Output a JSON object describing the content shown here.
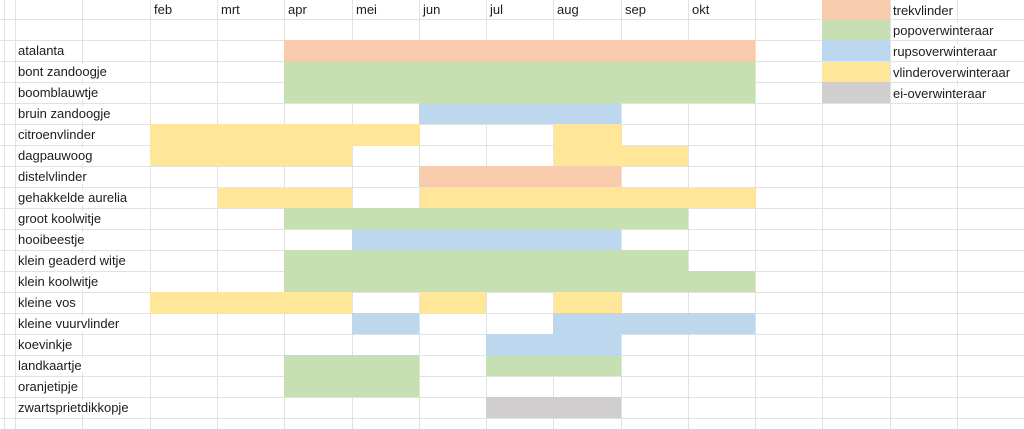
{
  "chart_data": {
    "type": "table",
    "title": "",
    "x_categories": [
      "feb",
      "mrt",
      "apr",
      "mei",
      "jun",
      "jul",
      "aug",
      "sep",
      "okt"
    ],
    "legend": [
      {
        "label": "trekvlinder",
        "color": "#F8CBAD"
      },
      {
        "label": "popoverwinteraar",
        "color": "#C6E0B4"
      },
      {
        "label": "rupsoverwinteraar",
        "color": "#BDD7EE"
      },
      {
        "label": "vlinderoverwinteraar",
        "color": "#FFE699"
      },
      {
        "label": "ei-overwinteraar",
        "color": "#D0CECE"
      }
    ],
    "rows": [
      {
        "name": "atalanta",
        "segments": [
          {
            "from": "apr",
            "to": "okt",
            "category": "trekvlinder"
          }
        ]
      },
      {
        "name": "bont zandoogje",
        "segments": [
          {
            "from": "apr",
            "to": "okt",
            "category": "popoverwinteraar"
          }
        ]
      },
      {
        "name": "boomblauwtje",
        "segments": [
          {
            "from": "apr",
            "to": "okt",
            "category": "popoverwinteraar"
          }
        ]
      },
      {
        "name": "bruin zandoogje",
        "segments": [
          {
            "from": "jun",
            "to": "aug",
            "category": "rupsoverwinteraar"
          }
        ]
      },
      {
        "name": "citroenvlinder",
        "segments": [
          {
            "from": "feb",
            "to": "mei",
            "category": "vlinderoverwinteraar"
          },
          {
            "from": "aug",
            "to": "aug",
            "category": "vlinderoverwinteraar"
          }
        ]
      },
      {
        "name": "dagpauwoog",
        "segments": [
          {
            "from": "feb",
            "to": "apr",
            "category": "vlinderoverwinteraar"
          },
          {
            "from": "aug",
            "to": "sep",
            "category": "vlinderoverwinteraar"
          }
        ]
      },
      {
        "name": "distelvlinder",
        "segments": [
          {
            "from": "jun",
            "to": "aug",
            "category": "trekvlinder"
          }
        ]
      },
      {
        "name": "gehakkelde aurelia",
        "segments": [
          {
            "from": "mrt",
            "to": "apr",
            "category": "vlinderoverwinteraar"
          },
          {
            "from": "jun",
            "to": "okt",
            "category": "vlinderoverwinteraar"
          }
        ]
      },
      {
        "name": "groot koolwitje",
        "segments": [
          {
            "from": "apr",
            "to": "sep",
            "category": "popoverwinteraar"
          }
        ]
      },
      {
        "name": "hooibeestje",
        "segments": [
          {
            "from": "mei",
            "to": "aug",
            "category": "rupsoverwinteraar"
          }
        ]
      },
      {
        "name": "klein geaderd witje",
        "segments": [
          {
            "from": "apr",
            "to": "sep",
            "category": "popoverwinteraar"
          }
        ]
      },
      {
        "name": "klein koolwitje",
        "segments": [
          {
            "from": "apr",
            "to": "okt",
            "category": "popoverwinteraar"
          }
        ]
      },
      {
        "name": "kleine vos",
        "segments": [
          {
            "from": "feb",
            "to": "apr",
            "category": "vlinderoverwinteraar"
          },
          {
            "from": "jun",
            "to": "jun",
            "category": "vlinderoverwinteraar"
          },
          {
            "from": "aug",
            "to": "aug",
            "category": "vlinderoverwinteraar"
          }
        ]
      },
      {
        "name": "kleine vuurvlinder",
        "segments": [
          {
            "from": "mei",
            "to": "mei",
            "category": "rupsoverwinteraar"
          },
          {
            "from": "aug",
            "to": "okt",
            "category": "rupsoverwinteraar"
          }
        ]
      },
      {
        "name": "koevinkje",
        "segments": [
          {
            "from": "jul",
            "to": "aug",
            "category": "rupsoverwinteraar"
          }
        ]
      },
      {
        "name": "landkaartje",
        "segments": [
          {
            "from": "apr",
            "to": "mei",
            "category": "popoverwinteraar"
          },
          {
            "from": "jul",
            "to": "aug",
            "category": "popoverwinteraar"
          }
        ]
      },
      {
        "name": "oranjetipje",
        "segments": [
          {
            "from": "apr",
            "to": "mei",
            "category": "popoverwinteraar"
          }
        ]
      },
      {
        "name": "zwartsprietdikkopje",
        "segments": [
          {
            "from": "jul",
            "to": "aug",
            "category": "ei-overwinteraar"
          }
        ]
      }
    ],
    "layout_hints": {
      "grid": true,
      "legend_position": "top-right",
      "gridline_color": "#e2e2e2"
    }
  }
}
